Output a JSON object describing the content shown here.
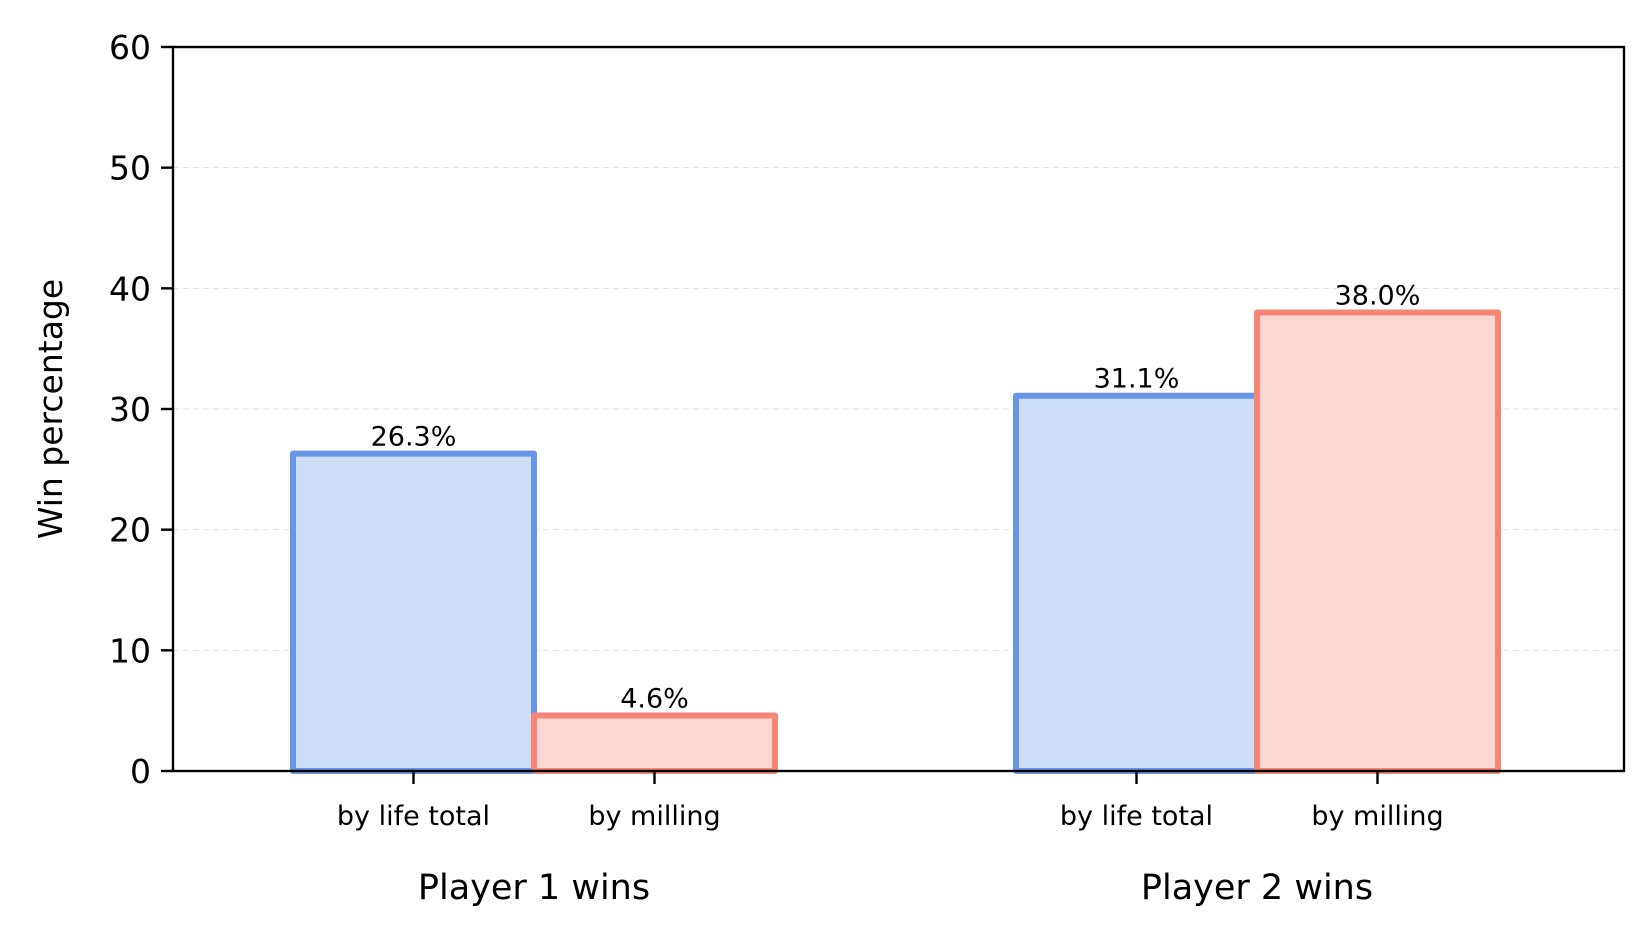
{
  "chart_data": {
    "type": "bar",
    "title": "",
    "ylabel": "Win percentage",
    "ylim": [
      0,
      60
    ],
    "yticks": [
      0,
      10,
      20,
      30,
      40,
      50,
      60
    ],
    "grid": "y-dashed",
    "groups": [
      {
        "label": "Player 1 wins",
        "bars": [
          {
            "label": "by life total",
            "value": 26.3,
            "text": "26.3%",
            "series": "life"
          },
          {
            "label": "by milling",
            "value": 4.6,
            "text": "4.6%",
            "series": "mill"
          }
        ]
      },
      {
        "label": "Player 2 wins",
        "bars": [
          {
            "label": "by life total",
            "value": 31.1,
            "text": "31.1%",
            "series": "life"
          },
          {
            "label": "by milling",
            "value": 38.0,
            "text": "38.0%",
            "series": "mill"
          }
        ]
      }
    ],
    "colors": {
      "life": {
        "fill": "#cfdef7",
        "stroke": "#6795e8"
      },
      "mill": {
        "fill": "#fcd6d2",
        "stroke": "#f58676"
      }
    }
  }
}
